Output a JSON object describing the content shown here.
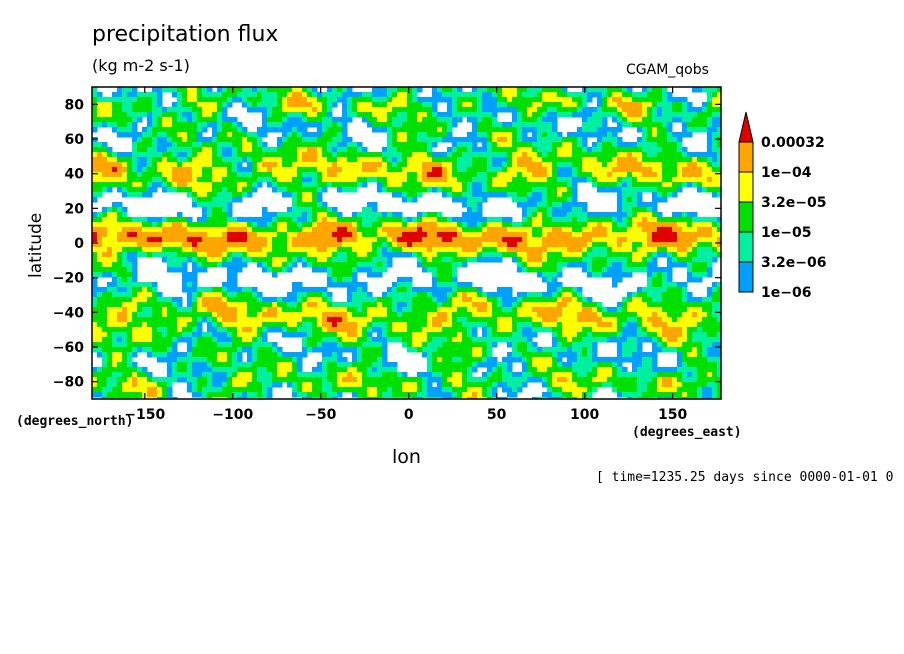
{
  "chart_data": {
    "type": "heatmap",
    "title": "precipitation flux",
    "subtitle": "(kg m-2 s-1)",
    "dataset": "CGAM_qobs",
    "xlabel": "lon",
    "ylabel": "latitude",
    "x_units": "(degrees_east)",
    "y_units": "(degrees_north)",
    "time_note": "[ time=1235.25 days since 0000-01-01 0",
    "xlim": [
      -180,
      177.5
    ],
    "ylim": [
      -90,
      90
    ],
    "x_ticks": [
      "-150",
      "-100",
      "-50",
      "0",
      "50",
      "100",
      "150"
    ],
    "y_ticks": [
      "80",
      "60",
      "40",
      "20",
      "0",
      "-20",
      "-40",
      "-60",
      "-80"
    ],
    "legend": {
      "levels": [
        "0.00032",
        "1e-04",
        "3.2e-05",
        "1e-05",
        "3.2e-06",
        "1e-06"
      ],
      "colors": [
        "#e00000",
        "#ffa500",
        "#ffff00",
        "#00e000",
        "#00f0a0",
        "#00a0ff"
      ]
    },
    "grid": false
  }
}
